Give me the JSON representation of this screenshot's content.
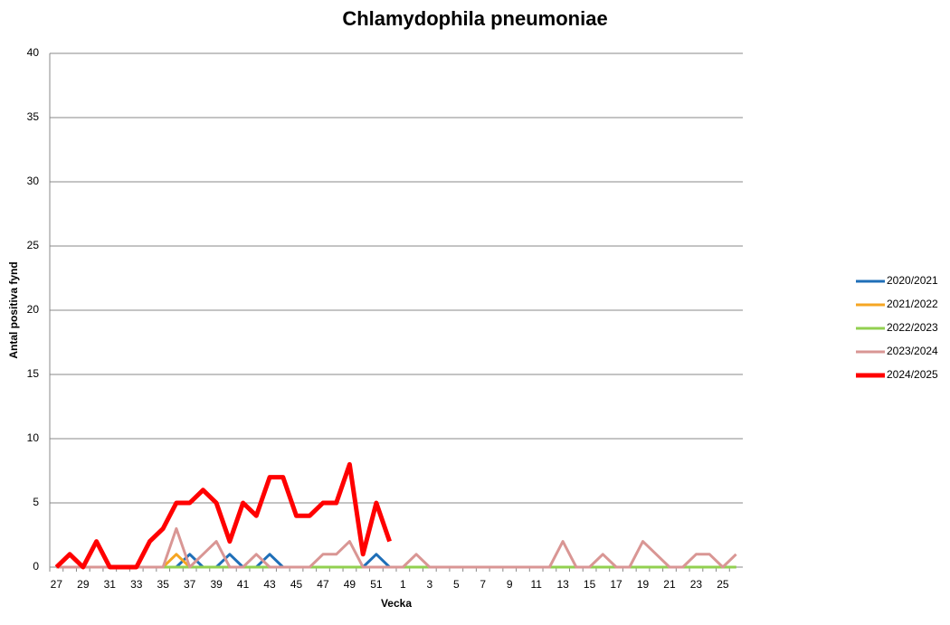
{
  "chart_data": {
    "type": "line",
    "title": "Chlamydophila pneumoniae",
    "x_label": "Vecka",
    "y_label": "Antal positiva fynd",
    "categories": [
      "27",
      null,
      "29",
      null,
      "31",
      null,
      "33",
      null,
      "35",
      null,
      "37",
      null,
      "39",
      null,
      "41",
      null,
      "43",
      null,
      "45",
      null,
      "47",
      null,
      "49",
      null,
      "51",
      null,
      "1",
      null,
      "3",
      null,
      "5",
      null,
      "7",
      null,
      "9",
      null,
      "11",
      null,
      "13",
      null,
      "15",
      null,
      "17",
      null,
      "19",
      null,
      "21",
      null,
      "23",
      null,
      "25",
      null
    ],
    "ylim": [
      0,
      40
    ],
    "yticks": [
      0,
      5,
      10,
      15,
      20,
      25,
      30,
      35,
      40
    ],
    "grid": true,
    "legend": "right",
    "series": [
      {
        "name": "2020/2021",
        "color": "#1f6fb8",
        "values": [
          0,
          0,
          0,
          0,
          0,
          0,
          0,
          0,
          0,
          0,
          1,
          0,
          0,
          1,
          0,
          0,
          1,
          0,
          0,
          0,
          0,
          0,
          0,
          0,
          1,
          0,
          0,
          0,
          0,
          0,
          0,
          0,
          0,
          0,
          0,
          0,
          0,
          0,
          0,
          0,
          0,
          0,
          0,
          0,
          0,
          0,
          0,
          0,
          0,
          0,
          0,
          0
        ]
      },
      {
        "name": "2021/2022",
        "color": "#f5a623",
        "values": [
          0,
          0,
          0,
          0,
          0,
          0,
          0,
          0,
          0,
          1,
          0,
          0,
          0,
          0,
          0,
          0,
          0,
          0,
          0,
          0,
          0,
          0,
          0,
          0,
          0,
          0,
          0,
          0,
          0,
          0,
          0,
          0,
          0,
          0,
          0,
          0,
          0,
          0,
          0,
          0,
          0,
          0,
          0,
          0,
          0,
          0,
          0,
          0,
          0,
          0,
          0,
          0
        ]
      },
      {
        "name": "2022/2023",
        "color": "#92d050",
        "values": [
          0,
          0,
          0,
          0,
          0,
          0,
          0,
          0,
          0,
          0,
          0,
          0,
          0,
          0,
          0,
          0,
          0,
          0,
          0,
          0,
          0,
          0,
          0,
          0,
          0,
          0,
          0,
          0,
          0,
          0,
          0,
          0,
          0,
          0,
          0,
          0,
          0,
          0,
          0,
          0,
          0,
          0,
          0,
          0,
          0,
          0,
          0,
          0,
          0,
          0,
          0,
          0
        ]
      },
      {
        "name": "2023/2024",
        "color": "#d99694",
        "values": [
          0,
          0,
          0,
          0,
          0,
          0,
          0,
          0,
          0,
          3,
          0,
          1,
          2,
          0,
          0,
          1,
          0,
          0,
          0,
          0,
          1,
          1,
          2,
          0,
          0,
          0,
          0,
          1,
          0,
          0,
          0,
          0,
          0,
          0,
          0,
          0,
          0,
          0,
          2,
          0,
          0,
          1,
          0,
          0,
          2,
          1,
          0,
          0,
          1,
          1,
          0,
          1
        ]
      },
      {
        "name": "2024/2025",
        "color": "#ff0000",
        "values": [
          0,
          1,
          0,
          2,
          0,
          0,
          0,
          2,
          3,
          5,
          5,
          6,
          5,
          2,
          5,
          4,
          7,
          7,
          4,
          4,
          5,
          5,
          8,
          1,
          5,
          2,
          null,
          null,
          null,
          null,
          null,
          null,
          null,
          null,
          null,
          null,
          null,
          null,
          null,
          null,
          null,
          null,
          null,
          null,
          null,
          null,
          null,
          null,
          null,
          null,
          null,
          null
        ]
      }
    ]
  }
}
